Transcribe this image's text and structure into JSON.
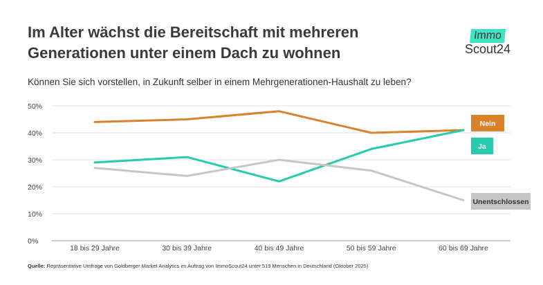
{
  "header": {
    "title": "Im Alter wächst die Bereitschaft mit mehreren Generationen unter einem Dach zu wohnen",
    "subtitle": "Können Sie sich vorstellen, in Zukunft selber in einem Mehrgenerationen-Haushalt zu leben?"
  },
  "logo": {
    "top": "Immo",
    "bottom": "Scout24",
    "accent": "#3fe3c3"
  },
  "footer": {
    "source_label": "Quelle:",
    "source_text": " Repräsentative Umfrage von Goldberger Market Analytics im Auftrag von ImmoScout24 unter 519 Menschen in Deutschland (Oktober 2025)"
  },
  "chart_data": {
    "type": "line",
    "categories": [
      "18 bis 29 Jahre",
      "30 bis 39 Jahre",
      "40 bis 49 Jahre",
      "50 bis 59 Jahre",
      "60 bis 69 Jahre"
    ],
    "y_ticks": [
      "0%",
      "10%",
      "20%",
      "30%",
      "40%",
      "50%"
    ],
    "ylim": [
      0,
      50
    ],
    "grid": true,
    "series": [
      {
        "name": "Nein",
        "values": [
          44,
          45,
          48,
          40,
          41
        ],
        "color": "#d9822b",
        "label_bg": "#d9822b",
        "label_color": "#ffffff"
      },
      {
        "name": "Ja",
        "values": [
          29,
          31,
          22,
          34,
          41
        ],
        "color": "#28cbb0",
        "label_bg": "#28cbb0",
        "label_color": "#ffffff"
      },
      {
        "name": "Unentschlossen",
        "values": [
          27,
          24,
          30,
          26,
          15
        ],
        "color": "#c6c6c6",
        "label_bg": "#c6c6c6",
        "label_color": "#333333"
      }
    ]
  }
}
